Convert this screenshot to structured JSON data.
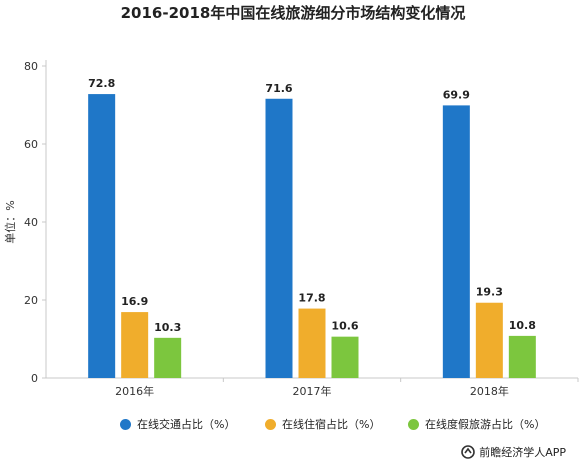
{
  "chart_data": {
    "type": "bar",
    "title": "2016-2018年中国在线旅游细分市场结构变化情况",
    "ylabel": "单位：%",
    "xlabel": "",
    "categories": [
      "2016年",
      "2017年",
      "2018年"
    ],
    "ylim": [
      0,
      80
    ],
    "yticks": [
      0,
      20,
      40,
      60,
      80
    ],
    "grid": false,
    "legend_position": "bottom",
    "series": [
      {
        "name": "在线交通占比（%）",
        "values": [
          72.8,
          71.6,
          69.9
        ],
        "color": "#1f77c8"
      },
      {
        "name": "在线住宿占比（%）",
        "values": [
          16.9,
          17.8,
          19.3
        ],
        "color": "#f0ad2c"
      },
      {
        "name": "在线度假旅游占比（%）",
        "values": [
          10.3,
          10.6,
          10.8
        ],
        "color": "#7cc63e"
      }
    ]
  },
  "source": {
    "text": "前瞻经济学人APP",
    "icon": "qianzhan-logo-icon"
  }
}
